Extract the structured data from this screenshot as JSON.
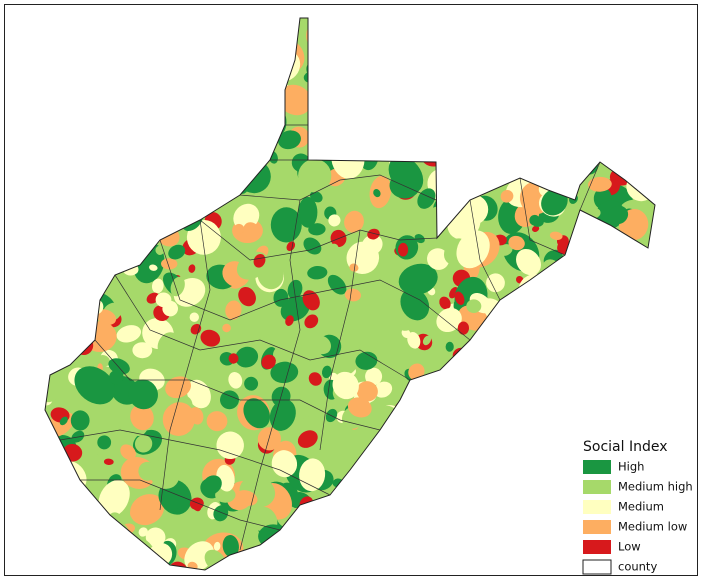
{
  "legend": {
    "title": "Social Index",
    "items": [
      {
        "label": "High",
        "color": "#1a9641"
      },
      {
        "label": "Medium high",
        "color": "#a6d96a"
      },
      {
        "label": "Medium",
        "color": "#ffffc0"
      },
      {
        "label": "Medium low",
        "color": "#fdae61"
      },
      {
        "label": "Low",
        "color": "#d7191c"
      },
      {
        "label": "county",
        "color": "#ffffff"
      }
    ]
  }
}
